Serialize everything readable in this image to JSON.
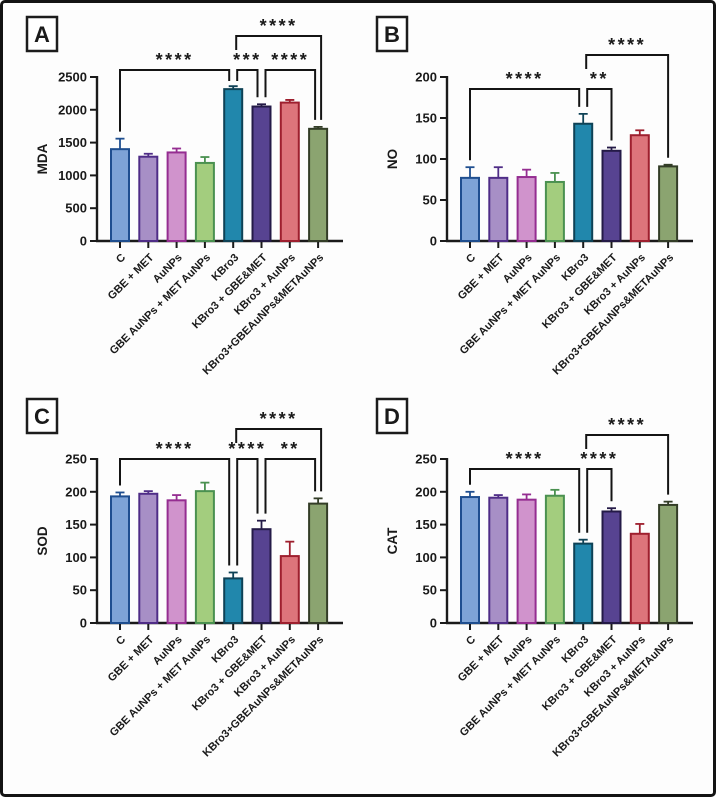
{
  "figure": {
    "background": "#fdfdfd",
    "border_color": "#131313",
    "text_color": "#1a1a1a",
    "panel_letters": [
      "A",
      "B",
      "C",
      "D"
    ]
  },
  "chart_data": {
    "type": "bar",
    "grid": false,
    "legend": "none",
    "categories": [
      "C",
      "GBE + MET",
      "AuNPs",
      "GBE AuNPs + MET AuNPs",
      "KBro3",
      "KBro3 + GBE&MET",
      "KBro3 + AuNPs",
      "KBro3+GBEAuNPs&METAuNPs"
    ],
    "bar_colors": [
      {
        "fill": "#7ea3d6",
        "stroke": "#1f4e8f"
      },
      {
        "fill": "#a78fc6",
        "stroke": "#4f2d87"
      },
      {
        "fill": "#d093cc",
        "stroke": "#952d91"
      },
      {
        "fill": "#a3cd7e",
        "stroke": "#4a9150"
      },
      {
        "fill": "#2187ac",
        "stroke": "#0e4256"
      },
      {
        "fill": "#574391",
        "stroke": "#241a47"
      },
      {
        "fill": "#dd747b",
        "stroke": "#9e1f2e"
      },
      {
        "fill": "#8ba470",
        "stroke": "#333d27"
      }
    ],
    "panels": [
      {
        "label": "A",
        "ylabel": "MDA",
        "ylim": [
          0,
          2500
        ],
        "ytick_step": 500,
        "values": [
          1400,
          1285,
          1350,
          1190,
          2315,
          2050,
          2110,
          1710
        ],
        "error_tops": [
          1560,
          1330,
          1410,
          1280,
          2360,
          2085,
          2150,
          1740
        ],
        "sig_levels": [
          -7,
          -41
        ],
        "significance": [
          {
            "from": 4,
            "to": 7,
            "label": "****",
            "level": 2,
            "from_drop": "short",
            "to_drop": "bar",
            "from_dx": 3,
            "to_dx": 3
          },
          {
            "from": 0,
            "to": 4,
            "label": "****",
            "level": 1,
            "from_drop": "bar",
            "to_drop": "bar",
            "from_dx": 0,
            "to_dx": -4
          },
          {
            "from": 4,
            "to": 5,
            "label": "***",
            "level": 1,
            "from_drop": "bar",
            "to_drop": "bar",
            "from_dx": 4,
            "to_dx": -4
          },
          {
            "from": 5,
            "to": 7,
            "label": "****",
            "level": 1,
            "from_drop": "bar",
            "to_drop": "bar",
            "from_dx": 4,
            "to_dx": -3
          }
        ]
      },
      {
        "label": "B",
        "ylabel": "NO",
        "ylim": [
          0,
          200
        ],
        "ytick_step": 50,
        "values": [
          77,
          77,
          78,
          72,
          143,
          110,
          129,
          91
        ],
        "error_tops": [
          90,
          90,
          87,
          83,
          155,
          114,
          135,
          93
        ],
        "sig_levels": [
          12,
          -22
        ],
        "significance": [
          {
            "from": 4,
            "to": 7,
            "label": "****",
            "level": 2,
            "from_drop": "short",
            "to_drop": "bar",
            "from_dx": 3,
            "to_dx": 0
          },
          {
            "from": 0,
            "to": 4,
            "label": "****",
            "level": 1,
            "from_drop": "bar",
            "to_drop": "bar",
            "from_dx": 0,
            "to_dx": -4
          },
          {
            "from": 4,
            "to": 5,
            "label": "**",
            "level": 1,
            "from_drop": "bar",
            "to_drop": "bar",
            "from_dx": 4,
            "to_dx": 0
          }
        ]
      },
      {
        "label": "C",
        "ylabel": "SOD",
        "ylim": [
          0,
          250
        ],
        "ytick_step": 50,
        "values": [
          193,
          197,
          187,
          201,
          68,
          143,
          102,
          182
        ],
        "error_tops": [
          199,
          201,
          195,
          214,
          77,
          156,
          124,
          190
        ],
        "sig_levels": [
          0,
          -30
        ],
        "significance": [
          {
            "from": 4,
            "to": 7,
            "label": "****",
            "level": 2,
            "from_drop": "short",
            "to_drop": "bar",
            "from_dx": 3,
            "to_dx": 3
          },
          {
            "from": 0,
            "to": 4,
            "label": "****",
            "level": 1,
            "from_drop": "bar",
            "to_drop": "bar",
            "from_dx": 0,
            "to_dx": -4
          },
          {
            "from": 4,
            "to": 5,
            "label": "****",
            "level": 1,
            "from_drop": "bar",
            "to_drop": "bar",
            "from_dx": 4,
            "to_dx": -4
          },
          {
            "from": 5,
            "to": 7,
            "label": "**",
            "level": 1,
            "from_drop": "bar",
            "to_drop": "bar",
            "from_dx": 4,
            "to_dx": -3
          }
        ]
      },
      {
        "label": "D",
        "ylabel": "CAT",
        "ylim": [
          0,
          250
        ],
        "ytick_step": 50,
        "values": [
          192,
          191,
          188,
          194,
          121,
          170,
          136,
          180
        ],
        "error_tops": [
          200,
          195,
          196,
          203,
          127,
          175,
          151,
          185
        ],
        "sig_levels": [
          10,
          -24
        ],
        "significance": [
          {
            "from": 4,
            "to": 7,
            "label": "****",
            "level": 2,
            "from_drop": "short",
            "to_drop": "bar",
            "from_dx": 3,
            "to_dx": 0
          },
          {
            "from": 0,
            "to": 4,
            "label": "****",
            "level": 1,
            "from_drop": "bar",
            "to_drop": "bar",
            "from_dx": 0,
            "to_dx": -4
          },
          {
            "from": 4,
            "to": 5,
            "label": "****",
            "level": 1,
            "from_drop": "bar",
            "to_drop": "bar",
            "from_dx": 4,
            "to_dx": 0
          }
        ]
      }
    ]
  }
}
